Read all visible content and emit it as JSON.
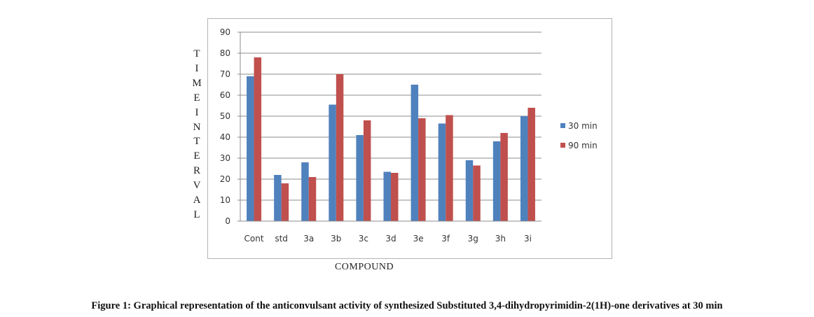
{
  "caption": "Figure 1: Graphical representation of the anticonvulsant activity of synthesized Substituted 3,4-dihydropyrimidin-2(1H)-one derivatives at 30 min",
  "chart_data": {
    "type": "bar",
    "xlabel": "COMPOUND",
    "ylabel": "TIMEINTERVAL",
    "ylim": [
      0,
      90
    ],
    "yticks": [
      "0",
      "10",
      "20",
      "30",
      "40",
      "50",
      "60",
      "70",
      "80",
      "90"
    ],
    "grid": true,
    "legend_position": "right",
    "categories": [
      "Cont",
      "std",
      "3a",
      "3b",
      "3c",
      "3d",
      "3e",
      "3f",
      "3g",
      "3h",
      "3i"
    ],
    "series": [
      {
        "name": "30 min",
        "color": "#4f81bd",
        "values": [
          69,
          22,
          28,
          55.5,
          41,
          23.5,
          65,
          46.5,
          29,
          38,
          50
        ]
      },
      {
        "name": "90 min",
        "color": "#c0504d",
        "values": [
          78,
          18,
          21,
          70,
          48,
          23,
          49,
          50.5,
          26.5,
          42,
          54
        ]
      }
    ]
  }
}
